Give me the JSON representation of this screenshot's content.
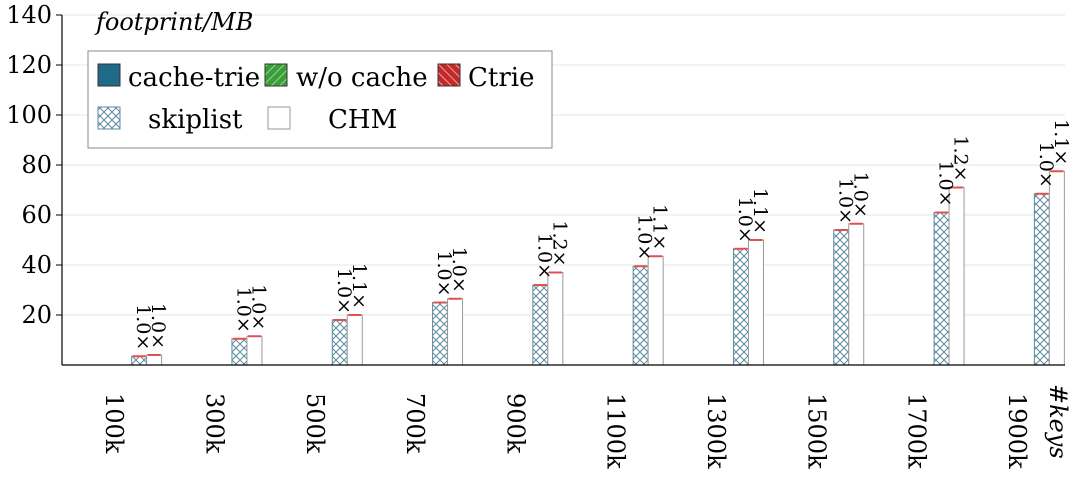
{
  "chart_data": {
    "type": "bar",
    "ylabel": "footprint/MB",
    "xlabel": "#keys",
    "ylim": [
      0,
      140
    ],
    "yticks": [
      20,
      40,
      60,
      80,
      100,
      120,
      140
    ],
    "grid": true,
    "legend_placement": "top-left",
    "categories": [
      "100k",
      "300k",
      "500k",
      "700k",
      "900k",
      "1100k",
      "1300k",
      "1500k",
      "1700k",
      "1900k"
    ],
    "series": [
      {
        "name": "cache-trie",
        "color": "#1f6a86",
        "values": [
          0,
          0,
          0,
          0,
          0,
          0,
          0,
          0,
          0,
          0
        ]
      },
      {
        "name": "w/o cache",
        "color": "#3a9e3a",
        "values": [
          0,
          0,
          0,
          0,
          0,
          0,
          0,
          0,
          0,
          0
        ]
      },
      {
        "name": "Ctrie",
        "color": "#c22a2a",
        "values": [
          0,
          0,
          0,
          0,
          0,
          0,
          0,
          0,
          0,
          0
        ]
      },
      {
        "name": "skiplist",
        "color": "#5c8aa0",
        "values": [
          3.5,
          10.5,
          18,
          25,
          32,
          39.5,
          46.5,
          54,
          61,
          68.5
        ]
      },
      {
        "name": "CHM",
        "color": "#999999",
        "values": [
          4,
          11.5,
          20,
          26.5,
          37,
          43.5,
          50,
          56.5,
          71,
          77.5
        ]
      }
    ],
    "ratio_labels": [
      [
        "1.0×",
        "1.0×"
      ],
      [
        "1.0×",
        "1.0×"
      ],
      [
        "1.0×",
        "1.1×"
      ],
      [
        "1.0×",
        "1.0×"
      ],
      [
        "1.0×",
        "1.2×"
      ],
      [
        "1.0×",
        "1.1×"
      ],
      [
        "1.0×",
        "1.1×"
      ],
      [
        "1.0×",
        "1.0×"
      ],
      [
        "1.0×",
        "1.2×"
      ],
      [
        "1.0×",
        "1.1×"
      ]
    ]
  }
}
